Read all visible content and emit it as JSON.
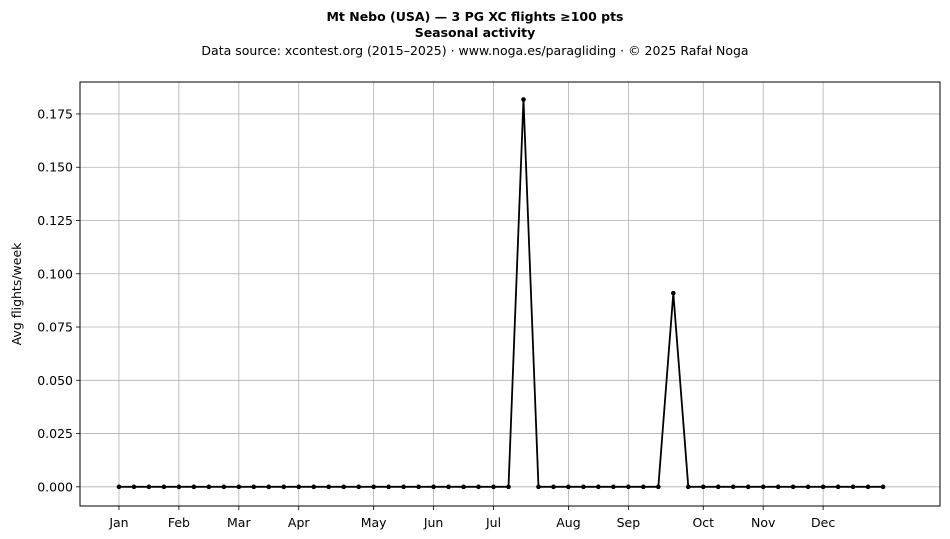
{
  "chart_data": {
    "type": "line",
    "title": "Mt Nebo (USA)  —  3 PG XC flights ≥100 pts",
    "subtitle": "Seasonal activity",
    "source_note": "Data source: xcontest.org (2015–2025)  ·  www.noga.es/paragliding  ·  © 2025 Rafał Noga",
    "xlabel": "",
    "ylabel": "Avg flights/week",
    "ylim": [
      -0.009,
      0.19
    ],
    "xlim": [
      -2.6,
      54.8
    ],
    "grid": true,
    "legend": "none",
    "x_tick_labels": [
      {
        "week": 0,
        "label": "Jan"
      },
      {
        "week": 4,
        "label": "Feb"
      },
      {
        "week": 8,
        "label": "Mar"
      },
      {
        "week": 12,
        "label": "Apr"
      },
      {
        "week": 17,
        "label": "May"
      },
      {
        "week": 21,
        "label": "Jun"
      },
      {
        "week": 25,
        "label": "Jul"
      },
      {
        "week": 30,
        "label": "Aug"
      },
      {
        "week": 34,
        "label": "Sep"
      },
      {
        "week": 39,
        "label": "Oct"
      },
      {
        "week": 43,
        "label": "Nov"
      },
      {
        "week": 47,
        "label": "Dec"
      }
    ],
    "y_ticks": [
      0.0,
      0.025,
      0.05,
      0.075,
      0.1,
      0.125,
      0.15,
      0.175
    ],
    "y_tick_labels": [
      "0.000",
      "0.025",
      "0.050",
      "0.075",
      "0.100",
      "0.125",
      "0.150",
      "0.175"
    ],
    "series": [
      {
        "color": "#000000",
        "x": [
          0,
          1,
          2,
          3,
          4,
          5,
          6,
          7,
          8,
          9,
          10,
          11,
          12,
          13,
          14,
          15,
          16,
          17,
          18,
          19,
          20,
          21,
          22,
          23,
          24,
          25,
          26,
          27,
          28,
          29,
          30,
          31,
          32,
          33,
          34,
          35,
          36,
          37,
          38,
          39,
          40,
          41,
          42,
          43,
          44,
          45,
          46,
          47,
          48,
          49,
          50,
          51
        ],
        "values": [
          0,
          0,
          0,
          0,
          0,
          0,
          0,
          0,
          0,
          0,
          0,
          0,
          0,
          0,
          0,
          0,
          0,
          0,
          0,
          0,
          0,
          0,
          0,
          0,
          0,
          0,
          0,
          0.1818,
          0,
          0,
          0,
          0,
          0,
          0,
          0,
          0,
          0,
          0.0909,
          0,
          0,
          0,
          0,
          0,
          0,
          0,
          0,
          0,
          0,
          0,
          0,
          0,
          0
        ]
      }
    ]
  }
}
